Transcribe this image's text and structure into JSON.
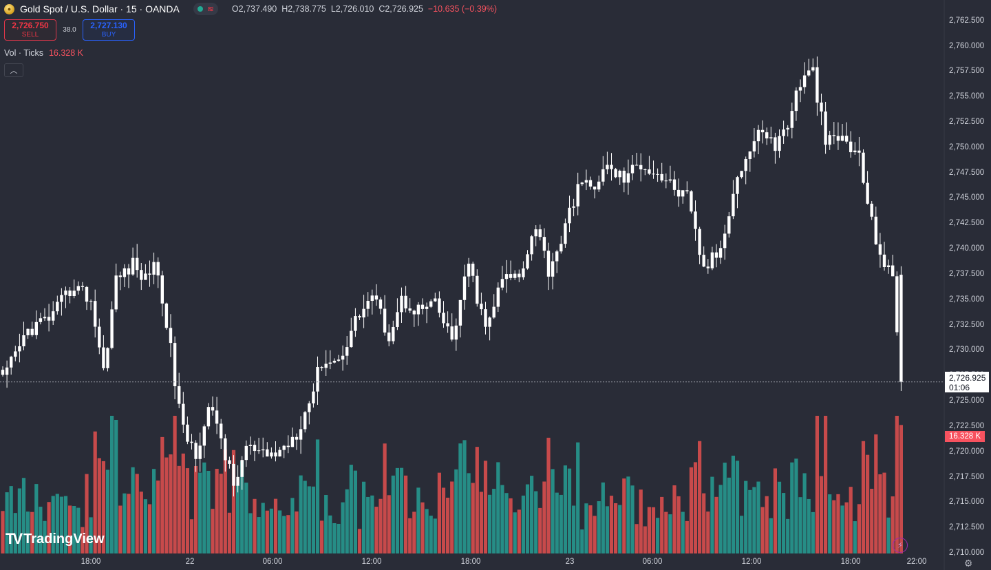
{
  "header": {
    "symbol": "Gold Spot / U.S. Dollar · 15 · OANDA",
    "open": "O2,737.490",
    "high": "H2,738.775",
    "low": "L2,726.010",
    "close": "C2,726.925",
    "change": "−10.635 (−0.39%)"
  },
  "trade": {
    "sell_price": "2,726.750",
    "sell_label": "SELL",
    "spread": "38.0",
    "buy_price": "2,727.130",
    "buy_label": "BUY"
  },
  "volume_legend": {
    "label": "Vol · Ticks",
    "value": "16.328 K"
  },
  "price_tag": {
    "price": "2,726.925",
    "countdown": "01:06"
  },
  "volume_tag": "16.328 K",
  "brand": "TradingView",
  "colors": {
    "up": "#ffffff",
    "down": "#ffffff",
    "vol_up": "#26a69a",
    "vol_down": "#ef5350",
    "background": "#292c37"
  },
  "chart_data": {
    "type": "candlestick",
    "ylim": [
      2710.0,
      2763.5
    ],
    "yticks": [
      "2,762.500",
      "2,760.000",
      "2,757.500",
      "2,755.000",
      "2,752.500",
      "2,750.000",
      "2,747.500",
      "2,745.000",
      "2,742.500",
      "2,740.000",
      "2,737.500",
      "2,735.000",
      "2,732.500",
      "2,730.000",
      "2,727.500",
      "2,725.000",
      "2,722.500",
      "2,720.000",
      "2,717.500",
      "2,715.000",
      "2,712.500",
      "2,710.000"
    ],
    "xticks": [
      "18:00",
      "22",
      "06:00",
      "12:00",
      "18:00",
      "23",
      "06:00",
      "12:00",
      "18:00",
      "22:00"
    ],
    "anchors": [
      [
        0,
        2727.0
      ],
      [
        6,
        2732.0
      ],
      [
        12,
        2733.5
      ],
      [
        17,
        2736.5
      ],
      [
        21,
        2735.0
      ],
      [
        24,
        2728.0
      ],
      [
        27,
        2737.0
      ],
      [
        31,
        2738.5
      ],
      [
        34,
        2737.0
      ],
      [
        36,
        2739.0
      ],
      [
        39,
        2733.0
      ],
      [
        41,
        2727.0
      ],
      [
        43,
        2722.0
      ],
      [
        46,
        2720.0
      ],
      [
        49,
        2724.0
      ],
      [
        51,
        2723.0
      ],
      [
        55,
        2716.5
      ],
      [
        58,
        2720.5
      ],
      [
        62,
        2719.5
      ],
      [
        66,
        2720.0
      ],
      [
        70,
        2722.0
      ],
      [
        73,
        2725.0
      ],
      [
        76,
        2729.0
      ],
      [
        80,
        2729.0
      ],
      [
        84,
        2733.0
      ],
      [
        88,
        2735.5
      ],
      [
        92,
        2731.5
      ],
      [
        95,
        2735.0
      ],
      [
        99,
        2734.0
      ],
      [
        103,
        2734.5
      ],
      [
        107,
        2731.0
      ],
      [
        111,
        2738.5
      ],
      [
        115,
        2732.0
      ],
      [
        119,
        2737.0
      ],
      [
        123,
        2737.5
      ],
      [
        127,
        2742.5
      ],
      [
        130,
        2738.0
      ],
      [
        134,
        2742.0
      ],
      [
        137,
        2746.5
      ],
      [
        140,
        2746.0
      ],
      [
        144,
        2748.0
      ],
      [
        148,
        2747.0
      ],
      [
        152,
        2748.5
      ],
      [
        156,
        2747.5
      ],
      [
        160,
        2746.0
      ],
      [
        163,
        2745.0
      ],
      [
        167,
        2738.0
      ],
      [
        171,
        2740.0
      ],
      [
        174,
        2746.0
      ],
      [
        177,
        2749.0
      ],
      [
        181,
        2752.0
      ],
      [
        184,
        2750.0
      ],
      [
        187,
        2752.5
      ],
      [
        190,
        2756.5
      ],
      [
        193,
        2757.5
      ],
      [
        196,
        2750.5
      ],
      [
        200,
        2751.0
      ],
      [
        204,
        2749.0
      ],
      [
        207,
        2742.5
      ],
      [
        210,
        2738.5
      ],
      [
        212,
        2737.0
      ],
      [
        214,
        2726.9
      ]
    ],
    "volume_ylim": [
      0,
      30
    ]
  }
}
